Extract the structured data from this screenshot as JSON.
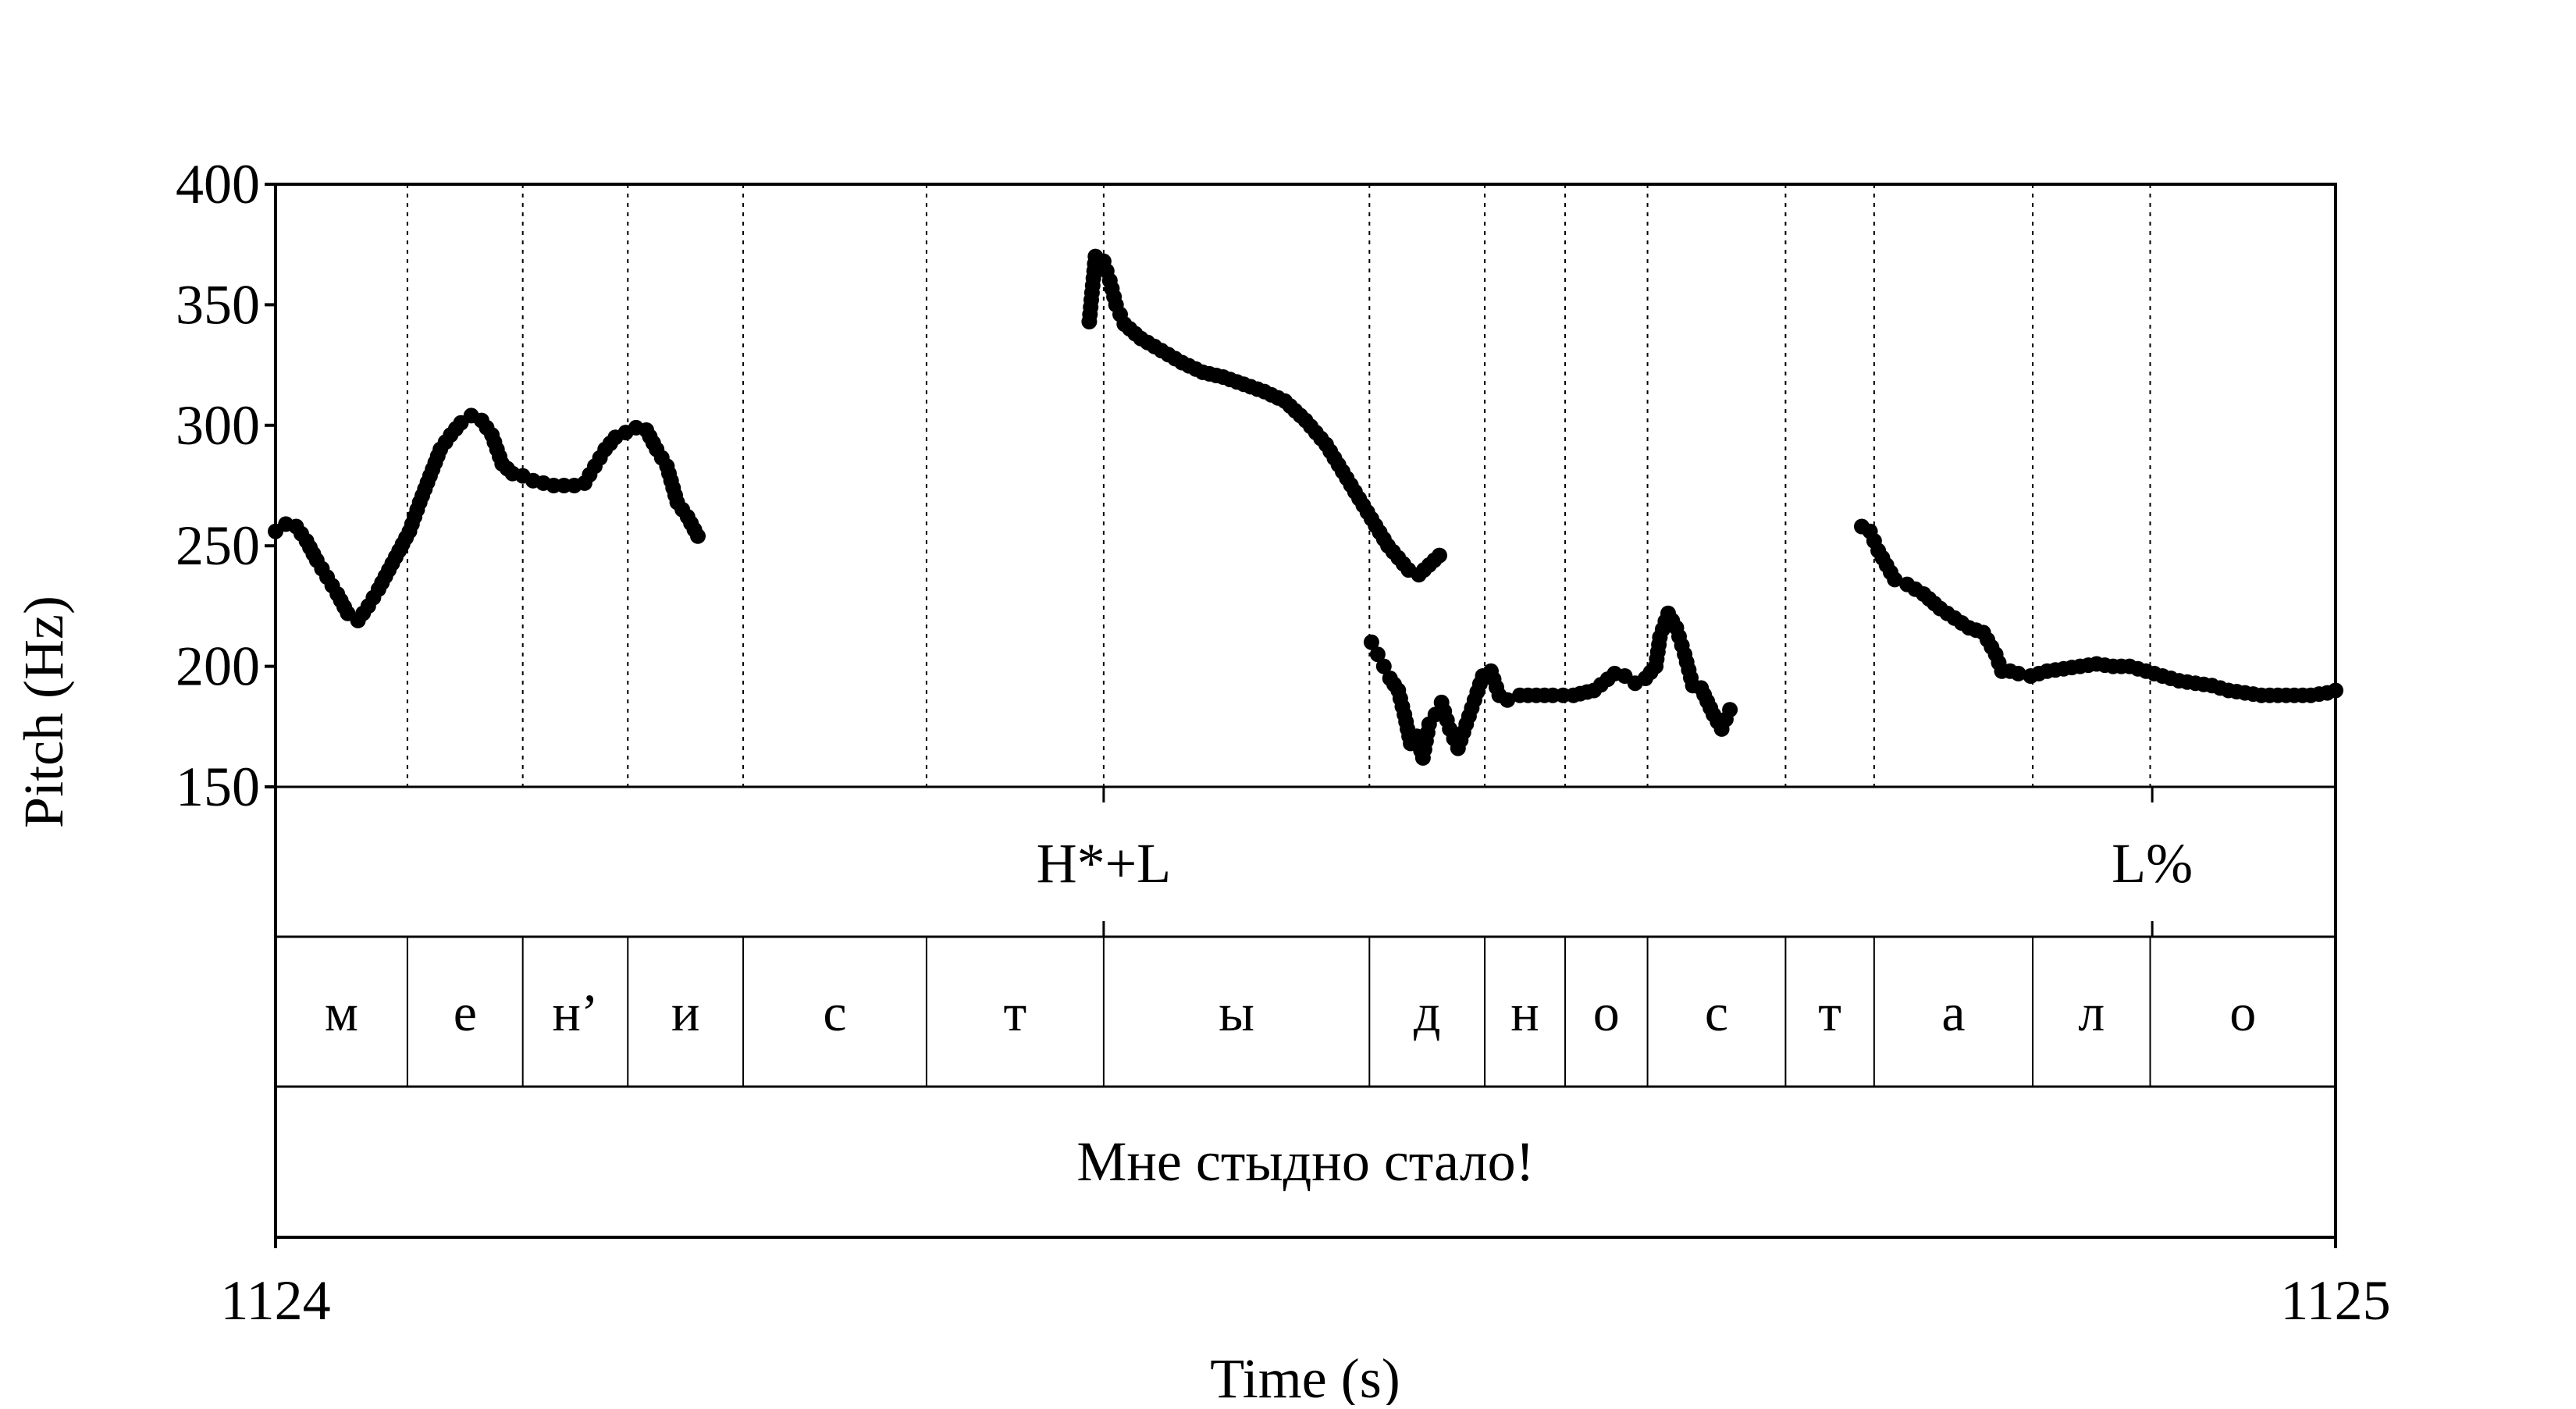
{
  "chart_data": {
    "type": "scatter",
    "title": "",
    "xlabel": "Time (s)",
    "ylabel": "Pitch (Hz)",
    "xlim": [
      1124,
      1125
    ],
    "ylim": [
      150,
      400
    ],
    "x_ticks": [
      "1124",
      "1125"
    ],
    "y_ticks": [
      "150",
      "200",
      "250",
      "300",
      "350",
      "400"
    ],
    "series": [
      {
        "marker_color": "#000000",
        "segments": [
          [
            [
              1124.0,
              256
            ],
            [
              1124.005,
              259
            ],
            [
              1124.01,
              258
            ],
            [
              1124.015,
              252
            ],
            [
              1124.02,
              244
            ],
            [
              1124.025,
              237
            ],
            [
              1124.03,
              230
            ],
            [
              1124.035,
              222
            ],
            [
              1124.04,
              219
            ],
            [
              1124.045,
              225
            ],
            [
              1124.05,
              232
            ],
            [
              1124.055,
              240
            ],
            [
              1124.06,
              248
            ],
            [
              1124.065,
              256
            ],
            [
              1124.07,
              268
            ],
            [
              1124.075,
              279
            ],
            [
              1124.08,
              290
            ],
            [
              1124.085,
              296
            ],
            [
              1124.09,
              301
            ],
            [
              1124.095,
              304
            ],
            [
              1124.1,
              302
            ],
            [
              1124.105,
              296
            ],
            [
              1124.11,
              284
            ],
            [
              1124.115,
              280
            ],
            [
              1124.12,
              279
            ],
            [
              1124.125,
              277
            ],
            [
              1124.13,
              276
            ],
            [
              1124.135,
              275
            ],
            [
              1124.14,
              275
            ],
            [
              1124.145,
              275
            ],
            [
              1124.15,
              276
            ],
            [
              1124.155,
              283
            ],
            [
              1124.16,
              290
            ],
            [
              1124.165,
              295
            ],
            [
              1124.17,
              297
            ],
            [
              1124.175,
              299
            ],
            [
              1124.18,
              298
            ],
            [
              1124.185,
              290
            ],
            [
              1124.19,
              283
            ],
            [
              1124.195,
              268
            ],
            [
              1124.2,
              262
            ],
            [
              1124.205,
              254
            ]
          ],
          [
            [
              1124.395,
              343
            ],
            [
              1124.398,
              370
            ],
            [
              1124.402,
              368
            ],
            [
              1124.405,
              360
            ],
            [
              1124.408,
              350
            ],
            [
              1124.412,
              342
            ],
            [
              1124.42,
              336
            ],
            [
              1124.43,
              331
            ],
            [
              1124.44,
              326
            ],
            [
              1124.45,
              322
            ],
            [
              1124.46,
              320
            ],
            [
              1124.47,
              317
            ],
            [
              1124.48,
              314
            ],
            [
              1124.49,
              310
            ],
            [
              1124.5,
              302
            ],
            [
              1124.51,
              292
            ],
            [
              1124.52,
              278
            ],
            [
              1124.53,
              264
            ],
            [
              1124.54,
              250
            ],
            [
              1124.55,
              240
            ],
            [
              1124.555,
              238
            ],
            [
              1124.56,
              242
            ],
            [
              1124.565,
              246
            ]
          ],
          [
            [
              1124.532,
              210
            ],
            [
              1124.535,
              205
            ],
            [
              1124.538,
              200
            ],
            [
              1124.541,
              195
            ],
            [
              1124.545,
              190
            ],
            [
              1124.548,
              180
            ],
            [
              1124.551,
              168
            ],
            [
              1124.554,
              171
            ],
            [
              1124.557,
              162
            ],
            [
              1124.56,
              176
            ],
            [
              1124.563,
              180
            ],
            [
              1124.566,
              185
            ],
            [
              1124.57,
              174
            ],
            [
              1124.574,
              166
            ],
            [
              1124.578,
              176
            ],
            [
              1124.582,
              186
            ],
            [
              1124.586,
              196
            ],
            [
              1124.59,
              198
            ],
            [
              1124.594,
              188
            ],
            [
              1124.598,
              186
            ],
            [
              1124.604,
              188
            ],
            [
              1124.612,
              188
            ],
            [
              1124.62,
              188
            ],
            [
              1124.63,
              188
            ],
            [
              1124.64,
              190
            ],
            [
              1124.65,
              197
            ],
            [
              1124.655,
              196
            ],
            [
              1124.66,
              193
            ],
            [
              1124.665,
              195
            ],
            [
              1124.67,
              200
            ],
            [
              1124.672,
              212
            ],
            [
              1124.676,
              222
            ],
            [
              1124.68,
              216
            ],
            [
              1124.684,
              205
            ],
            [
              1124.688,
              192
            ],
            [
              1124.692,
              191
            ],
            [
              1124.698,
              180
            ],
            [
              1124.702,
              174
            ],
            [
              1124.706,
              182
            ]
          ],
          [
            [
              1124.77,
              258
            ],
            [
              1124.774,
              256
            ],
            [
              1124.778,
              248
            ],
            [
              1124.782,
              242
            ],
            [
              1124.786,
              236
            ],
            [
              1124.792,
              234
            ],
            [
              1124.8,
              230
            ],
            [
              1124.808,
              224
            ],
            [
              1124.815,
              220
            ],
            [
              1124.822,
              216
            ],
            [
              1124.829,
              214
            ],
            [
              1124.835,
              205
            ],
            [
              1124.838,
              198
            ],
            [
              1124.842,
              198
            ],
            [
              1124.846,
              197
            ],
            [
              1124.852,
              196
            ],
            [
              1124.86,
              198
            ],
            [
              1124.868,
              199
            ],
            [
              1124.876,
              200
            ],
            [
              1124.884,
              201
            ],
            [
              1124.892,
              200
            ],
            [
              1124.9,
              200
            ],
            [
              1124.908,
              198
            ],
            [
              1124.916,
              196
            ],
            [
              1124.924,
              194
            ],
            [
              1124.932,
              193
            ],
            [
              1124.94,
              192
            ],
            [
              1124.948,
              190
            ],
            [
              1124.956,
              189
            ],
            [
              1124.964,
              188
            ],
            [
              1124.972,
              188
            ],
            [
              1124.98,
              188
            ],
            [
              1124.988,
              188
            ],
            [
              1124.996,
              189
            ],
            [
              1125.0,
              190
            ]
          ]
        ]
      }
    ],
    "tiers": {
      "tones": [
        {
          "x": 1124.402,
          "label": "H*+L"
        },
        {
          "x": 1124.911,
          "label": "L%"
        }
      ],
      "phones": [
        {
          "start": 1124.0,
          "end": 1124.064,
          "label": "м"
        },
        {
          "start": 1124.064,
          "end": 1124.12,
          "label": "е"
        },
        {
          "start": 1124.12,
          "end": 1124.171,
          "label": "н’"
        },
        {
          "start": 1124.171,
          "end": 1124.227,
          "label": "и"
        },
        {
          "start": 1124.227,
          "end": 1124.316,
          "label": "с"
        },
        {
          "start": 1124.316,
          "end": 1124.402,
          "label": "т"
        },
        {
          "start": 1124.402,
          "end": 1124.531,
          "label": "ы"
        },
        {
          "start": 1124.531,
          "end": 1124.587,
          "label": "д"
        },
        {
          "start": 1124.587,
          "end": 1124.626,
          "label": "н"
        },
        {
          "start": 1124.626,
          "end": 1124.666,
          "label": "о"
        },
        {
          "start": 1124.666,
          "end": 1124.733,
          "label": "с"
        },
        {
          "start": 1124.733,
          "end": 1124.776,
          "label": "т"
        },
        {
          "start": 1124.776,
          "end": 1124.853,
          "label": "а"
        },
        {
          "start": 1124.853,
          "end": 1124.91,
          "label": "л"
        },
        {
          "start": 1124.91,
          "end": 1125.0,
          "label": "о"
        }
      ],
      "sentence": "Мне стыдно стало!"
    }
  }
}
